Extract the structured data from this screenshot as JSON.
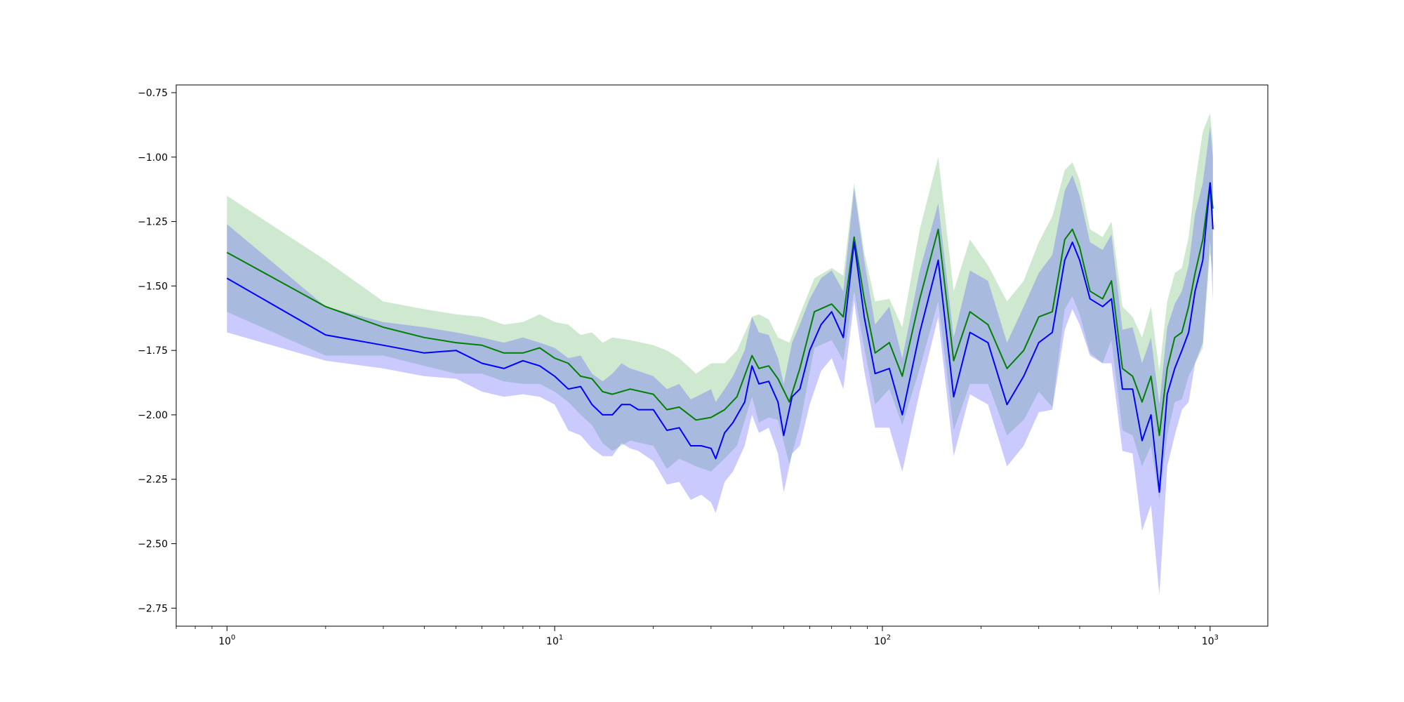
{
  "chart_data": {
    "type": "line",
    "title": "",
    "xlabel": "",
    "ylabel": "",
    "xscale": "log",
    "xlim": [
      0.7,
      1500
    ],
    "ylim": [
      -2.82,
      -0.72
    ],
    "grid": false,
    "legend": "none",
    "x_ticks": [
      {
        "base": "10",
        "exp": "0",
        "value": 1
      },
      {
        "base": "10",
        "exp": "1",
        "value": 10
      },
      {
        "base": "10",
        "exp": "2",
        "value": 100
      },
      {
        "base": "10",
        "exp": "3",
        "value": 1000
      }
    ],
    "y_ticks": [
      {
        "label": "−0.75",
        "value": -0.75
      },
      {
        "label": "−1.00",
        "value": -1.0
      },
      {
        "label": "−1.25",
        "value": -1.25
      },
      {
        "label": "−1.50",
        "value": -1.5
      },
      {
        "label": "−1.75",
        "value": -1.75
      },
      {
        "label": "−2.00",
        "value": -2.0
      },
      {
        "label": "−2.25",
        "value": -2.25
      },
      {
        "label": "−2.50",
        "value": -2.5
      },
      {
        "label": "−2.75",
        "value": -2.75
      }
    ],
    "series": [
      {
        "color": "#008000",
        "band_color": "#4caf50",
        "band_opacity": 0.27,
        "x": [
          1,
          2,
          3,
          4,
          5,
          6,
          7,
          8,
          9,
          10,
          11,
          12,
          13,
          14,
          15,
          17,
          20,
          22,
          24,
          27,
          30,
          33,
          36,
          40,
          42,
          45,
          48,
          52,
          56,
          62,
          70,
          76,
          82,
          88,
          95,
          105,
          115,
          130,
          148,
          165,
          185,
          210,
          240,
          270,
          300,
          330,
          360,
          380,
          400,
          430,
          470,
          500,
          540,
          580,
          620,
          660,
          700,
          740,
          780,
          820,
          860,
          900,
          950,
          1000,
          1020
        ],
        "y": [
          -1.37,
          -1.58,
          -1.66,
          -1.7,
          -1.72,
          -1.73,
          -1.76,
          -1.76,
          -1.74,
          -1.78,
          -1.8,
          -1.85,
          -1.86,
          -1.91,
          -1.92,
          -1.9,
          -1.92,
          -1.98,
          -1.97,
          -2.02,
          -2.01,
          -1.98,
          -1.93,
          -1.77,
          -1.82,
          -1.81,
          -1.86,
          -1.95,
          -1.82,
          -1.6,
          -1.57,
          -1.62,
          -1.31,
          -1.55,
          -1.76,
          -1.72,
          -1.85,
          -1.55,
          -1.28,
          -1.79,
          -1.6,
          -1.65,
          -1.82,
          -1.75,
          -1.62,
          -1.6,
          -1.32,
          -1.28,
          -1.35,
          -1.52,
          -1.55,
          -1.48,
          -1.82,
          -1.85,
          -1.95,
          -1.85,
          -2.08,
          -1.82,
          -1.7,
          -1.68,
          -1.58,
          -1.45,
          -1.32,
          -1.1,
          -1.2
        ],
        "upper": [
          -1.15,
          -1.4,
          -1.56,
          -1.59,
          -1.61,
          -1.62,
          -1.65,
          -1.64,
          -1.61,
          -1.64,
          -1.65,
          -1.69,
          -1.68,
          -1.72,
          -1.7,
          -1.71,
          -1.73,
          -1.75,
          -1.78,
          -1.84,
          -1.8,
          -1.8,
          -1.75,
          -1.62,
          -1.61,
          -1.63,
          -1.7,
          -1.72,
          -1.61,
          -1.47,
          -1.43,
          -1.46,
          -1.1,
          -1.37,
          -1.56,
          -1.55,
          -1.66,
          -1.28,
          -1.0,
          -1.52,
          -1.32,
          -1.42,
          -1.56,
          -1.48,
          -1.33,
          -1.23,
          -1.05,
          -1.02,
          -1.09,
          -1.28,
          -1.31,
          -1.25,
          -1.58,
          -1.62,
          -1.7,
          -1.58,
          -1.83,
          -1.56,
          -1.45,
          -1.43,
          -1.31,
          -1.1,
          -0.9,
          -0.83,
          -0.95
        ],
        "lower": [
          -1.6,
          -1.77,
          -1.77,
          -1.81,
          -1.84,
          -1.84,
          -1.87,
          -1.88,
          -1.88,
          -1.91,
          -1.95,
          -2.0,
          -2.04,
          -2.11,
          -2.14,
          -2.1,
          -2.12,
          -2.21,
          -2.17,
          -2.2,
          -2.22,
          -2.17,
          -2.12,
          -1.93,
          -2.03,
          -2.01,
          -2.02,
          -2.19,
          -2.04,
          -1.74,
          -1.71,
          -1.79,
          -1.52,
          -1.74,
          -1.96,
          -1.9,
          -2.04,
          -1.82,
          -1.56,
          -2.06,
          -1.88,
          -1.88,
          -2.08,
          -2.02,
          -1.91,
          -1.97,
          -1.59,
          -1.54,
          -1.61,
          -1.76,
          -1.8,
          -1.71,
          -2.06,
          -2.08,
          -2.2,
          -2.12,
          -2.33,
          -2.08,
          -1.95,
          -1.94,
          -1.85,
          -1.8,
          -1.74,
          -1.37,
          -1.45
        ]
      },
      {
        "color": "#0000ff",
        "band_color": "#5050ff",
        "band_opacity": 0.3,
        "x": [
          1,
          2,
          3,
          4,
          5,
          6,
          7,
          8,
          9,
          10,
          11,
          12,
          13,
          14,
          15,
          16,
          17,
          18,
          20,
          22,
          24,
          26,
          28,
          30,
          31,
          33,
          35,
          38,
          40,
          42,
          45,
          48,
          50,
          53,
          56,
          60,
          65,
          70,
          76,
          82,
          88,
          95,
          105,
          115,
          130,
          148,
          165,
          185,
          210,
          240,
          270,
          300,
          330,
          360,
          380,
          400,
          430,
          470,
          500,
          540,
          580,
          620,
          660,
          700,
          740,
          780,
          820,
          860,
          900,
          950,
          1000,
          1020
        ],
        "y": [
          -1.47,
          -1.69,
          -1.73,
          -1.76,
          -1.75,
          -1.8,
          -1.82,
          -1.79,
          -1.81,
          -1.85,
          -1.9,
          -1.89,
          -1.96,
          -2.0,
          -2.0,
          -1.96,
          -1.96,
          -1.98,
          -1.98,
          -2.06,
          -2.05,
          -2.12,
          -2.12,
          -2.13,
          -2.17,
          -2.07,
          -2.03,
          -1.95,
          -1.81,
          -1.88,
          -1.87,
          -1.95,
          -2.08,
          -1.93,
          -1.9,
          -1.75,
          -1.65,
          -1.6,
          -1.7,
          -1.33,
          -1.62,
          -1.84,
          -1.82,
          -2.0,
          -1.68,
          -1.4,
          -1.93,
          -1.68,
          -1.72,
          -1.96,
          -1.85,
          -1.72,
          -1.68,
          -1.4,
          -1.33,
          -1.4,
          -1.55,
          -1.58,
          -1.55,
          -1.9,
          -1.9,
          -2.1,
          -2.0,
          -2.3,
          -1.92,
          -1.82,
          -1.75,
          -1.68,
          -1.52,
          -1.4,
          -1.1,
          -1.28
        ],
        "upper": [
          -1.26,
          -1.58,
          -1.64,
          -1.66,
          -1.68,
          -1.7,
          -1.72,
          -1.7,
          -1.72,
          -1.74,
          -1.78,
          -1.77,
          -1.84,
          -1.87,
          -1.84,
          -1.8,
          -1.82,
          -1.83,
          -1.85,
          -1.9,
          -1.88,
          -1.94,
          -1.92,
          -1.9,
          -1.95,
          -1.9,
          -1.85,
          -1.75,
          -1.62,
          -1.68,
          -1.69,
          -1.78,
          -1.88,
          -1.72,
          -1.65,
          -1.55,
          -1.47,
          -1.44,
          -1.52,
          -1.12,
          -1.4,
          -1.65,
          -1.58,
          -1.78,
          -1.44,
          -1.18,
          -1.7,
          -1.44,
          -1.48,
          -1.72,
          -1.58,
          -1.45,
          -1.38,
          -1.13,
          -1.07,
          -1.15,
          -1.33,
          -1.36,
          -1.3,
          -1.67,
          -1.66,
          -1.8,
          -1.7,
          -1.96,
          -1.66,
          -1.57,
          -1.52,
          -1.42,
          -1.22,
          -1.1,
          -0.88,
          -1.0
        ],
        "lower": [
          -1.68,
          -1.79,
          -1.82,
          -1.85,
          -1.86,
          -1.91,
          -1.93,
          -1.92,
          -1.93,
          -1.96,
          -2.06,
          -2.08,
          -2.13,
          -2.16,
          -2.16,
          -2.11,
          -2.13,
          -2.14,
          -2.18,
          -2.27,
          -2.26,
          -2.33,
          -2.31,
          -2.34,
          -2.38,
          -2.26,
          -2.22,
          -2.12,
          -2.0,
          -2.07,
          -2.05,
          -2.15,
          -2.3,
          -2.15,
          -2.12,
          -1.96,
          -1.83,
          -1.78,
          -1.9,
          -1.56,
          -1.83,
          -2.05,
          -2.05,
          -2.22,
          -1.91,
          -1.62,
          -2.16,
          -1.92,
          -1.96,
          -2.2,
          -2.12,
          -1.99,
          -1.98,
          -1.67,
          -1.59,
          -1.65,
          -1.77,
          -1.8,
          -1.8,
          -2.14,
          -2.15,
          -2.45,
          -2.35,
          -2.7,
          -2.2,
          -2.08,
          -1.98,
          -1.95,
          -1.8,
          -1.72,
          -1.32,
          -1.56
        ]
      }
    ]
  }
}
